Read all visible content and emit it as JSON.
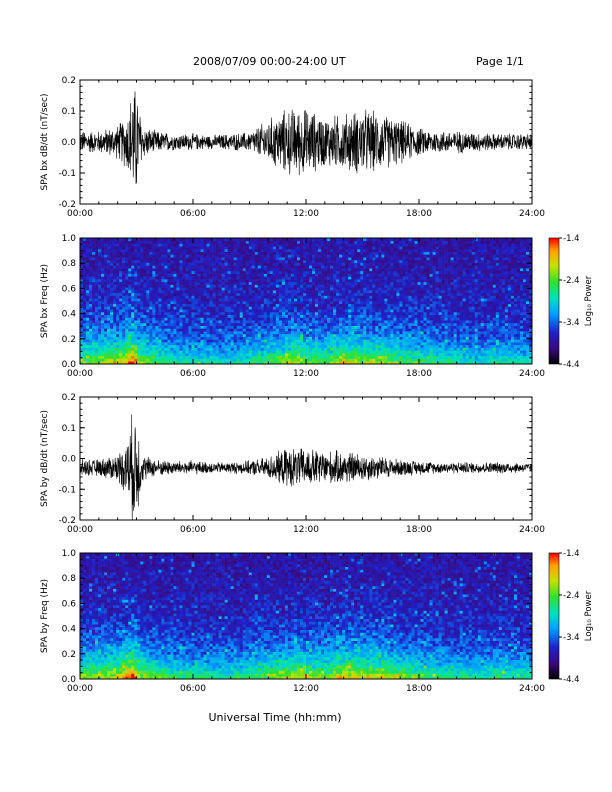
{
  "header": {
    "title": "2008/07/09  00:00-24:00 UT",
    "page": "Page 1/1"
  },
  "colors": {
    "trace": "#000000",
    "colormap": [
      "#000000",
      "#3a0a7a",
      "#2020c8",
      "#00a0ff",
      "#00e0c0",
      "#30e030",
      "#c8e000",
      "#ffa000",
      "#ff0000"
    ]
  },
  "chart_data": [
    {
      "type": "line",
      "ylabel": "SPA bx dB/dt (nT/sec)",
      "xlim": [
        0,
        24
      ],
      "ylim": [
        -0.2,
        0.2
      ],
      "yticks": [
        "-0.2",
        "-0.1",
        "0.0",
        "0.1",
        "0.2"
      ],
      "xticks": [
        "00:00",
        "06:00",
        "12:00",
        "18:00",
        "24:00"
      ],
      "envelope": {
        "hours": [
          0,
          1,
          2,
          2.5,
          2.8,
          3.0,
          3.3,
          4,
          5,
          6,
          7,
          8,
          9,
          10,
          11,
          12,
          13,
          14,
          15,
          16,
          17,
          18,
          19,
          20,
          21,
          22,
          23,
          24
        ],
        "amplitude": [
          0.04,
          0.04,
          0.06,
          0.1,
          0.2,
          0.2,
          0.06,
          0.04,
          0.03,
          0.03,
          0.025,
          0.03,
          0.035,
          0.08,
          0.12,
          0.12,
          0.09,
          0.1,
          0.12,
          0.1,
          0.08,
          0.05,
          0.04,
          0.04,
          0.035,
          0.03,
          0.03,
          0.03
        ],
        "offset": 0.0
      }
    },
    {
      "type": "heatmap",
      "ylabel": "SPA bx Freq (Hz)",
      "xlim": [
        0,
        24
      ],
      "ylim": [
        0,
        1.0
      ],
      "yticks": [
        "0.0",
        "0.2",
        "0.4",
        "0.6",
        "0.8",
        "1.0"
      ],
      "xticks": [
        "00:00",
        "06:00",
        "12:00",
        "18:00",
        "24:00"
      ],
      "colorbar": {
        "label": "Log₁₀ Power",
        "ticks": [
          "-1.4",
          "-2.4",
          "-3.4",
          "-4.4"
        ],
        "range": [
          -4.4,
          -1.4
        ]
      },
      "activity": {
        "hours": [
          0,
          2,
          2.8,
          3.2,
          5,
          8,
          10,
          11.5,
          13,
          14,
          15,
          16,
          17,
          19,
          21,
          22.5,
          24
        ],
        "level": [
          0.45,
          0.6,
          0.8,
          0.55,
          0.35,
          0.3,
          0.45,
          0.55,
          0.45,
          0.6,
          0.55,
          0.55,
          0.45,
          0.4,
          0.3,
          0.35,
          0.3
        ]
      }
    },
    {
      "type": "line",
      "ylabel": "SPA by dB/dt (nT/sec)",
      "xlim": [
        0,
        24
      ],
      "ylim": [
        -0.2,
        0.2
      ],
      "yticks": [
        "-0.2",
        "-0.1",
        "0.0",
        "0.1",
        "0.2"
      ],
      "xticks": [
        "00:00",
        "06:00",
        "12:00",
        "18:00",
        "24:00"
      ],
      "envelope": {
        "hours": [
          0,
          1,
          2,
          2.5,
          2.8,
          3.0,
          3.3,
          4,
          5,
          6,
          7,
          8,
          9,
          10,
          11,
          12,
          13,
          14,
          15,
          16,
          17,
          18,
          19,
          20,
          21,
          22,
          23,
          24
        ],
        "amplitude": [
          0.03,
          0.03,
          0.05,
          0.1,
          0.2,
          0.2,
          0.05,
          0.03,
          0.025,
          0.025,
          0.02,
          0.02,
          0.025,
          0.04,
          0.07,
          0.07,
          0.06,
          0.06,
          0.05,
          0.04,
          0.03,
          0.025,
          0.02,
          0.02,
          0.02,
          0.02,
          0.02,
          0.015
        ],
        "offset": -0.03
      }
    },
    {
      "type": "heatmap",
      "ylabel": "SPA by Freq (Hz)",
      "xlim": [
        0,
        24
      ],
      "ylim": [
        0,
        1.0
      ],
      "yticks": [
        "0.0",
        "0.2",
        "0.4",
        "0.6",
        "0.8",
        "1.0"
      ],
      "xticks": [
        "00:00",
        "06:00",
        "12:00",
        "18:00",
        "24:00"
      ],
      "colorbar": {
        "label": "Log₁₀ Power",
        "ticks": [
          "-1.4",
          "-2.4",
          "-3.4",
          "-4.4"
        ],
        "range": [
          -4.4,
          -1.4
        ]
      },
      "activity": {
        "hours": [
          0,
          2,
          2.8,
          3.2,
          5,
          8,
          10,
          11.5,
          13,
          14,
          15,
          16,
          17,
          19,
          21,
          22.5,
          24
        ],
        "level": [
          0.5,
          0.6,
          0.85,
          0.55,
          0.4,
          0.35,
          0.5,
          0.6,
          0.5,
          0.65,
          0.6,
          0.6,
          0.5,
          0.4,
          0.35,
          0.4,
          0.35
        ]
      }
    }
  ],
  "xlabel": "Universal Time (hh:mm)"
}
